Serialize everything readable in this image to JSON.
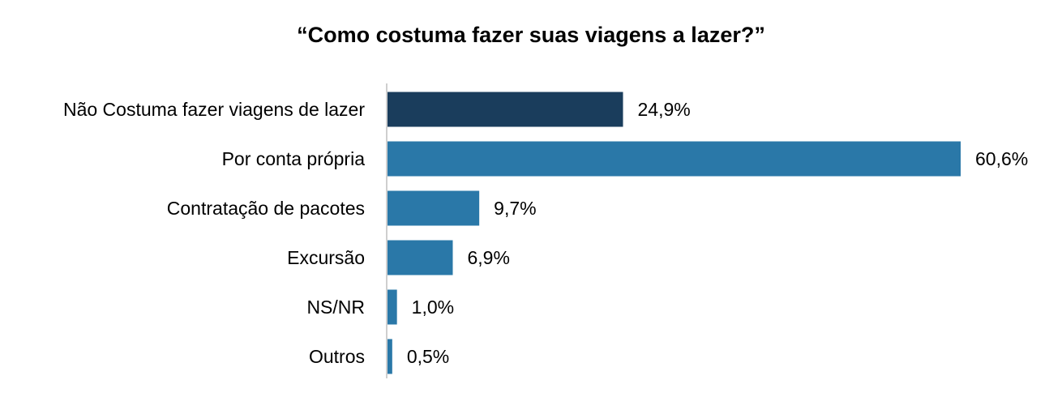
{
  "chart_data": {
    "type": "bar",
    "orientation": "horizontal",
    "title": "“Como costuma fazer suas viagens a lazer?”",
    "categories": [
      "Não Costuma fazer viagens de lazer",
      "Por conta própria",
      "Contratação de pacotes",
      "Excursão",
      "NS/NR",
      "Outros"
    ],
    "values": [
      24.9,
      60.6,
      9.7,
      6.9,
      1.0,
      0.5
    ],
    "data_labels": [
      "24,9%",
      "60,6%",
      "9,7%",
      "6,9%",
      "1,0%",
      "0,5%"
    ],
    "colors": [
      "#1a3d5c",
      "#2a78a8",
      "#2a78a8",
      "#2a78a8",
      "#2a78a8",
      "#2a78a8"
    ],
    "axis_color": "#bfbfbf",
    "xlabel": "",
    "ylabel": "",
    "xlim": [
      0,
      60.6
    ],
    "grid": false,
    "legend": "none"
  }
}
